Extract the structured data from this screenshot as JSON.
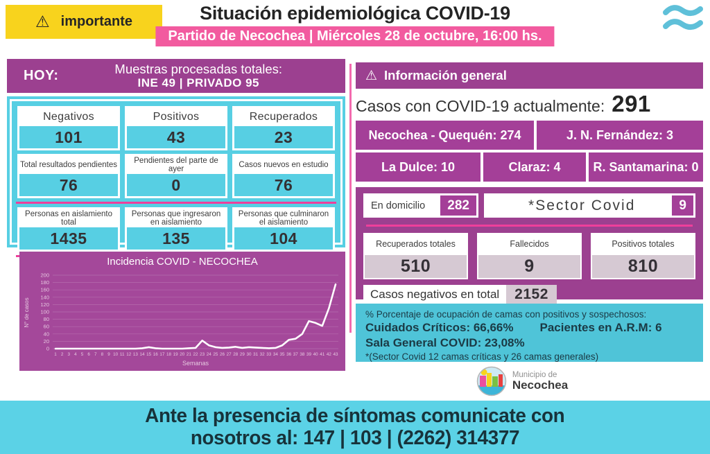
{
  "header": {
    "badge_label": "importante",
    "warning_glyph": "⚠",
    "title": "Situación epidemiológica COVID-19",
    "subtitle": "Partido de Necochea | Miércoles 28 de octubre, 16:00 hs."
  },
  "left_panel": {
    "hoy_label": "HOY:",
    "muestras_title": "Muestras procesadas totales:",
    "muestras_detail": "INE 49 | PRIVADO 95",
    "stats": [
      {
        "label": "Negativos",
        "value": "101"
      },
      {
        "label": "Positivos",
        "value": "43"
      },
      {
        "label": "Recuperados",
        "value": "23"
      },
      {
        "label": "Total resultados pendientes",
        "value": "76"
      },
      {
        "label": "Pendientes del parte de ayer",
        "value": "0"
      },
      {
        "label": "Casos nuevos en estudio",
        "value": "76"
      },
      {
        "label": "Personas en aislamiento total",
        "value": "1435"
      },
      {
        "label": "Personas que ingresaron en aislamiento",
        "value": "135"
      },
      {
        "label": "Personas que culminaron el aislamiento",
        "value": "104"
      }
    ]
  },
  "chart_data": {
    "type": "line",
    "title": "Incidencia COVID - NECOCHEA",
    "xlabel": "Semanas",
    "ylabel": "N° de casos",
    "ylim": [
      0,
      200
    ],
    "ytick_step": 20,
    "grid": true,
    "legend": "none",
    "x": [
      1,
      2,
      3,
      4,
      5,
      6,
      7,
      8,
      9,
      10,
      11,
      12,
      13,
      14,
      15,
      16,
      17,
      18,
      19,
      20,
      21,
      22,
      23,
      24,
      25,
      26,
      27,
      28,
      29,
      30,
      31,
      32,
      33,
      34,
      35,
      36,
      37,
      38,
      39,
      40,
      41,
      42,
      43
    ],
    "values": [
      0,
      0,
      0,
      0,
      0,
      0,
      0,
      0,
      0,
      0,
      0,
      0,
      0,
      1,
      4,
      1,
      0,
      0,
      0,
      0,
      1,
      2,
      22,
      9,
      4,
      2,
      3,
      5,
      2,
      4,
      3,
      2,
      1,
      2,
      9,
      24,
      27,
      40,
      75,
      70,
      62,
      110,
      175
    ],
    "line_color": "#ffffff",
    "background": "#a4489a"
  },
  "info_panel": {
    "header": "Información general",
    "warning_glyph": "⚠",
    "current_cases_label": "Casos con COVID-19 actualmente:",
    "current_cases_value": "291",
    "regions_row1": [
      "Necochea - Quequén: 274",
      "J. N. Fernández: 3"
    ],
    "regions_row2": [
      "La Dulce: 10",
      "Claraz: 4",
      "R. Santamarina: 0"
    ],
    "domicilio_label": "En domicilio",
    "domicilio_value": "282",
    "sector_label": "*Sector Covid",
    "sector_value": "9",
    "totals": [
      {
        "label": "Recuperados totales",
        "value": "510"
      },
      {
        "label": "Fallecidos",
        "value": "9"
      },
      {
        "label": "Positivos totales",
        "value": "810"
      }
    ],
    "negatives_label": "Casos negativos en total",
    "negatives_value": "2152",
    "beds": {
      "line1": "% Porcentaje de ocupación de camas con positivos y sospechosos:",
      "criticos": "Cuidados Críticos: 66,66%",
      "arm": "Pacientes en A.R.M: 6",
      "sala": "Sala General COVID: 23,08%",
      "note": "*(Sector Covid 12 camas críticas y 26 camas generales)"
    },
    "logo_line1": "Municipio de",
    "logo_line2": "Necochea"
  },
  "footer": {
    "line1": "Ante la presencia de síntomas comunicate con",
    "line2": "nosotros al: 147 | 103 | (2262) 314377"
  },
  "colors": {
    "cyan": "#57cfe3",
    "purple": "#9c4090",
    "chart_purple": "#a4489a",
    "magenta_cell": "#a43f98",
    "pink": "#f25b9f",
    "pink_line": "#ee3f9b",
    "yellow": "#f8d31d",
    "value_gray": "#d6c9d3",
    "dark_text": "#2b2b2b"
  }
}
